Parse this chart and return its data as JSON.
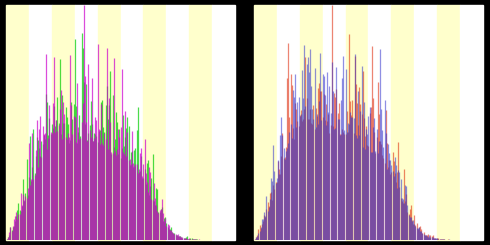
{
  "background_color": "#000000",
  "panel_bg_stripe_colors": [
    "#ffffcc",
    "#ffffff"
  ],
  "n_stripes": 10,
  "left_panel": {
    "color1": "#00cc00",
    "color2": "#cc00cc",
    "alpha1": 0.7,
    "alpha2": 0.7
  },
  "right_panel": {
    "color1": "#dd2200",
    "color2": "#3333cc",
    "alpha1": 0.55,
    "alpha2": 0.55
  },
  "figsize": [
    4.9,
    2.45
  ],
  "dpi": 100,
  "n_bars": 200
}
